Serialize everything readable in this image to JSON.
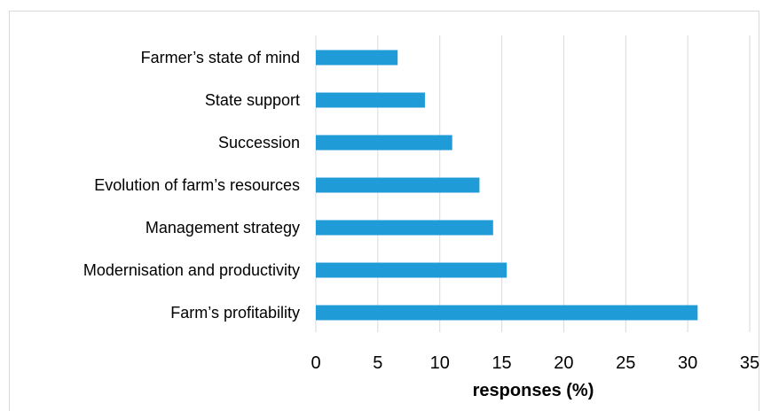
{
  "chart_data": {
    "type": "bar",
    "orientation": "horizontal",
    "categories": [
      "Farmer’s state of mind",
      "State support",
      "Succession",
      "Evolution of farm’s resources",
      "Management strategy",
      "Modernisation and productivity",
      "Farm’s profitability"
    ],
    "values": [
      6.6,
      8.8,
      11.0,
      13.2,
      14.3,
      15.4,
      30.8
    ],
    "title": "",
    "xlabel": "responses (%)",
    "ylabel": "",
    "xlim": [
      0,
      35
    ],
    "xticks": [
      "0",
      "5",
      "10",
      "15",
      "20",
      "25",
      "30",
      "35"
    ],
    "grid": "vertical",
    "legend": "none",
    "bar_color": "#1f9bd7"
  }
}
